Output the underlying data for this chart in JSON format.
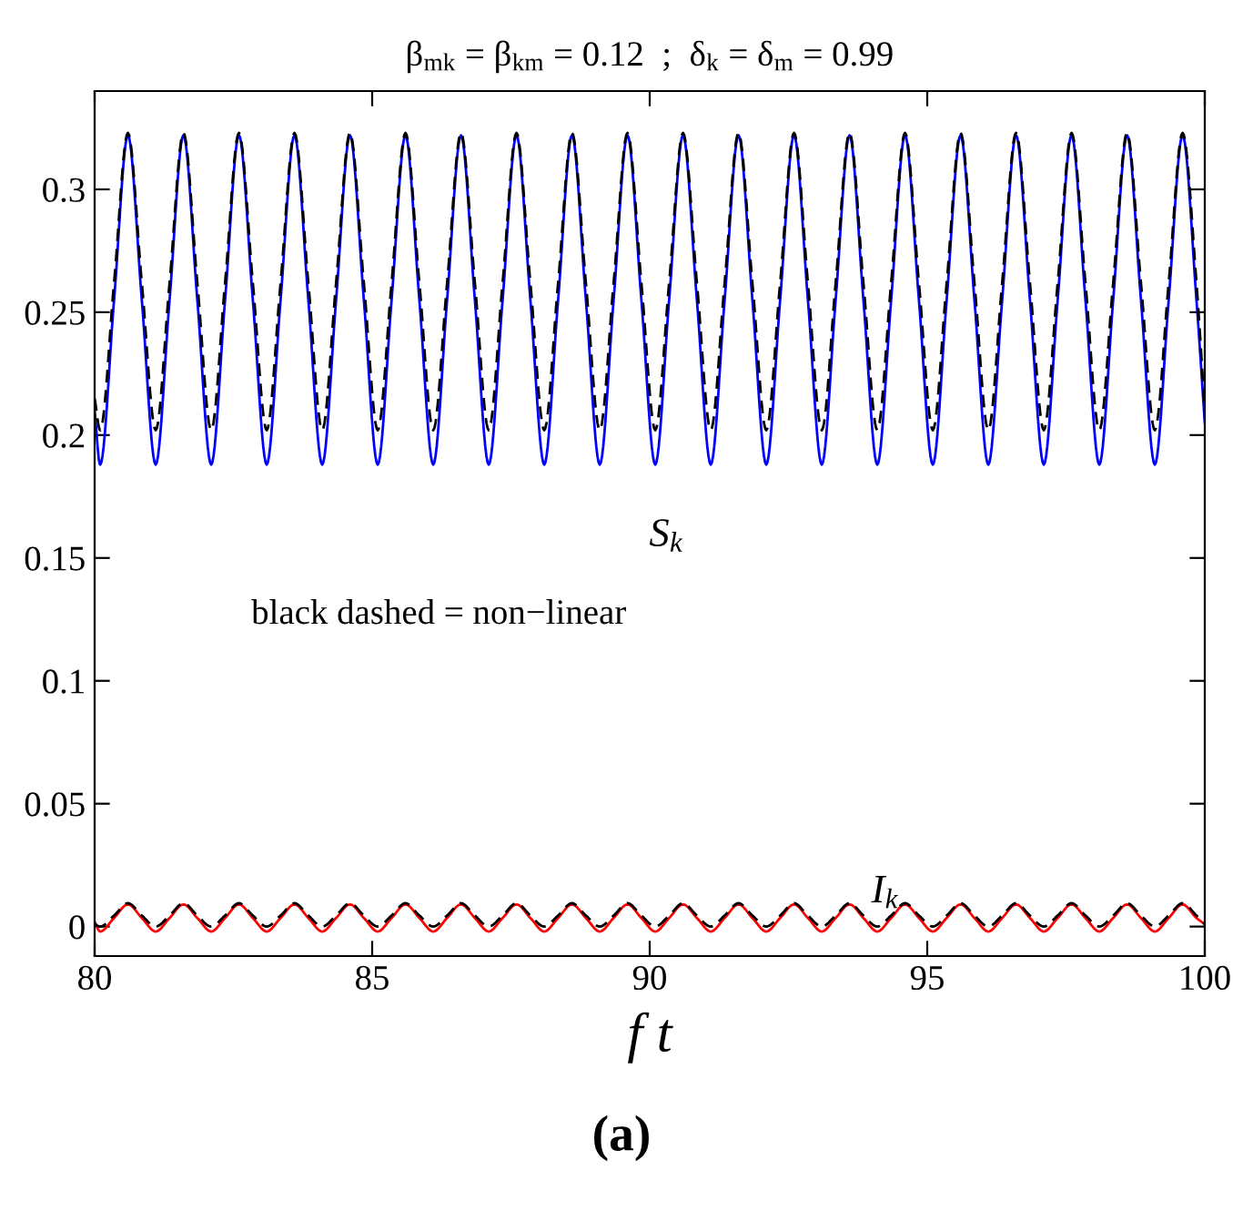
{
  "chart_data": {
    "type": "line",
    "title": "β$_{mk}$ = β$_{km}$ = 0.12  ;  δ$_{k}$ = δ$_{m}$ = 0.99",
    "xlabel": "f t",
    "x": [
      80,
      80.1,
      80.35,
      80.6,
      80.85,
      81.1,
      81.35,
      81.6,
      81.85,
      82.1,
      82.35,
      82.6,
      82.85,
      83.1,
      83.35,
      83.6,
      83.85,
      84.1,
      84.35,
      84.6,
      84.85,
      85.1,
      85.35,
      85.6,
      85.85,
      86.1,
      86.35,
      86.6,
      86.85,
      87.1,
      87.35,
      87.6,
      87.85,
      88.1,
      88.35,
      88.6,
      88.85,
      89.1,
      89.35,
      89.6,
      89.85,
      90.1,
      90.35,
      90.6,
      90.85,
      91.1,
      91.35,
      91.6,
      91.85,
      92.1,
      92.35,
      92.6,
      92.85,
      93.1,
      93.35,
      93.6,
      93.85,
      94.1,
      94.35,
      94.6,
      94.85,
      95.1,
      95.35,
      95.6,
      95.85,
      96.1,
      96.35,
      96.6,
      96.85,
      97.1,
      97.35,
      97.6,
      97.85,
      98.1,
      98.35,
      98.6,
      98.85,
      99.1,
      99.35,
      99.6,
      99.85,
      100
    ],
    "series": [
      {
        "color": "#0000ff",
        "line_style": "solid",
        "values": [
          0.21,
          0.188,
          0.255,
          0.322,
          0.255,
          0.188,
          0.255,
          0.322,
          0.255,
          0.188,
          0.255,
          0.322,
          0.255,
          0.188,
          0.255,
          0.322,
          0.255,
          0.188,
          0.255,
          0.322,
          0.255,
          0.188,
          0.255,
          0.322,
          0.255,
          0.188,
          0.255,
          0.322,
          0.255,
          0.188,
          0.255,
          0.322,
          0.255,
          0.188,
          0.255,
          0.322,
          0.255,
          0.188,
          0.255,
          0.322,
          0.255,
          0.188,
          0.255,
          0.322,
          0.255,
          0.188,
          0.255,
          0.322,
          0.255,
          0.188,
          0.255,
          0.322,
          0.255,
          0.188,
          0.255,
          0.322,
          0.255,
          0.188,
          0.255,
          0.322,
          0.255,
          0.188,
          0.255,
          0.322,
          0.255,
          0.188,
          0.255,
          0.322,
          0.255,
          0.188,
          0.255,
          0.322,
          0.255,
          0.188,
          0.255,
          0.322,
          0.255,
          0.188,
          0.255,
          0.322,
          0.255,
          0.205
        ]
      },
      {
        "color": "#ff0000",
        "line_style": "solid",
        "values": [
          0.002,
          -0.002,
          0.0035,
          0.009,
          0.0035,
          -0.002,
          0.0035,
          0.009,
          0.0035,
          -0.002,
          0.0035,
          0.009,
          0.0035,
          -0.002,
          0.0035,
          0.009,
          0.0035,
          -0.002,
          0.0035,
          0.009,
          0.0035,
          -0.002,
          0.0035,
          0.009,
          0.0035,
          -0.002,
          0.0035,
          0.009,
          0.0035,
          -0.002,
          0.0035,
          0.009,
          0.0035,
          -0.002,
          0.0035,
          0.009,
          0.0035,
          -0.002,
          0.0035,
          0.009,
          0.0035,
          -0.002,
          0.0035,
          0.009,
          0.0035,
          -0.002,
          0.0035,
          0.009,
          0.0035,
          -0.002,
          0.0035,
          0.009,
          0.0035,
          -0.002,
          0.0035,
          0.009,
          0.0035,
          -0.002,
          0.0035,
          0.009,
          0.0035,
          -0.002,
          0.0035,
          0.009,
          0.0035,
          -0.002,
          0.0035,
          0.009,
          0.0035,
          -0.002,
          0.0035,
          0.009,
          0.0035,
          -0.002,
          0.0035,
          0.009,
          0.0035,
          -0.002,
          0.0035,
          0.009,
          0.0035,
          0.001
        ]
      },
      {
        "color": "#000000",
        "line_style": "dashed",
        "values": [
          0.215,
          0.202,
          0.262,
          0.323,
          0.262,
          0.202,
          0.262,
          0.323,
          0.262,
          0.202,
          0.262,
          0.323,
          0.262,
          0.202,
          0.262,
          0.323,
          0.262,
          0.202,
          0.262,
          0.323,
          0.262,
          0.202,
          0.262,
          0.323,
          0.262,
          0.202,
          0.262,
          0.323,
          0.262,
          0.202,
          0.262,
          0.323,
          0.262,
          0.202,
          0.262,
          0.323,
          0.262,
          0.202,
          0.262,
          0.323,
          0.262,
          0.202,
          0.262,
          0.323,
          0.262,
          0.202,
          0.262,
          0.323,
          0.262,
          0.202,
          0.262,
          0.323,
          0.262,
          0.202,
          0.262,
          0.323,
          0.262,
          0.202,
          0.262,
          0.323,
          0.262,
          0.202,
          0.262,
          0.323,
          0.262,
          0.202,
          0.262,
          0.323,
          0.262,
          0.202,
          0.262,
          0.323,
          0.262,
          0.202,
          0.262,
          0.323,
          0.262,
          0.202,
          0.262,
          0.323,
          0.262,
          0.21
        ]
      },
      {
        "color": "#000000",
        "line_style": "dashed",
        "values": [
          0.001,
          0,
          0.0045,
          0.0095,
          0.0045,
          0,
          0.0045,
          0.0095,
          0.0045,
          0,
          0.0045,
          0.0095,
          0.0045,
          0,
          0.0045,
          0.0095,
          0.0045,
          0,
          0.0045,
          0.0095,
          0.0045,
          0,
          0.0045,
          0.0095,
          0.0045,
          0,
          0.0045,
          0.0095,
          0.0045,
          0,
          0.0045,
          0.0095,
          0.0045,
          0,
          0.0045,
          0.0095,
          0.0045,
          0,
          0.0045,
          0.0095,
          0.0045,
          0,
          0.0045,
          0.0095,
          0.0045,
          0,
          0.0045,
          0.0095,
          0.0045,
          0,
          0.0045,
          0.0095,
          0.0045,
          0,
          0.0045,
          0.0095,
          0.0045,
          0,
          0.0045,
          0.0095,
          0.0045,
          0,
          0.0045,
          0.0095,
          0.0045,
          0,
          0.0045,
          0.0095,
          0.0045,
          0,
          0.0045,
          0.0095,
          0.0045,
          0,
          0.0045,
          0.0095,
          0.0045,
          0,
          0.0045,
          0.0095,
          0.0045,
          0.001
        ]
      }
    ],
    "xlim": [
      80,
      100
    ],
    "xticks": [
      80,
      85,
      90,
      95,
      100
    ],
    "ylim": [
      -0.012,
      0.34
    ],
    "yticks": [
      0,
      0.05,
      0.1,
      0.15,
      0.2,
      0.25,
      0.3
    ],
    "grid": false,
    "legend": false,
    "marker": "none",
    "annotations": [
      "S$_{k}$",
      "I$_{k}$",
      "black dashed = non−linear",
      "(a)"
    ]
  }
}
